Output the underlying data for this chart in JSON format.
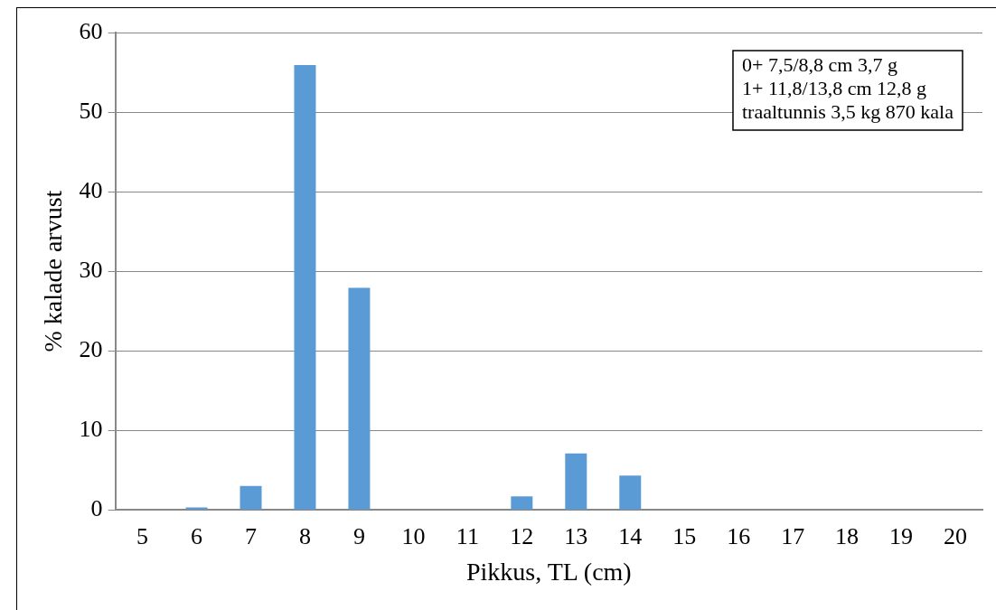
{
  "chart_data": {
    "type": "bar",
    "xlabel": "Pikkus, TL (cm)",
    "ylabel": "% kalade arvust",
    "categories": [
      "5",
      "6",
      "7",
      "8",
      "9",
      "10",
      "11",
      "12",
      "13",
      "14",
      "15",
      "16",
      "17",
      "18",
      "19",
      "20"
    ],
    "values": [
      0,
      0.3,
      3.0,
      55.9,
      27.9,
      0,
      0,
      1.7,
      7.1,
      4.3,
      0,
      0,
      0,
      0,
      0,
      0
    ],
    "color": "#5b9bd5",
    "ylim": [
      0,
      60
    ],
    "yticks": [
      0,
      10,
      20,
      30,
      40,
      50,
      60
    ],
    "grid": "y",
    "legend": false,
    "annotations": [
      "0+ 7,5/8,8 cm 3,7 g",
      "1+ 11,8/13,8 cm 12,8 g",
      "traaltunnis 3,5 kg 870 kala"
    ]
  }
}
